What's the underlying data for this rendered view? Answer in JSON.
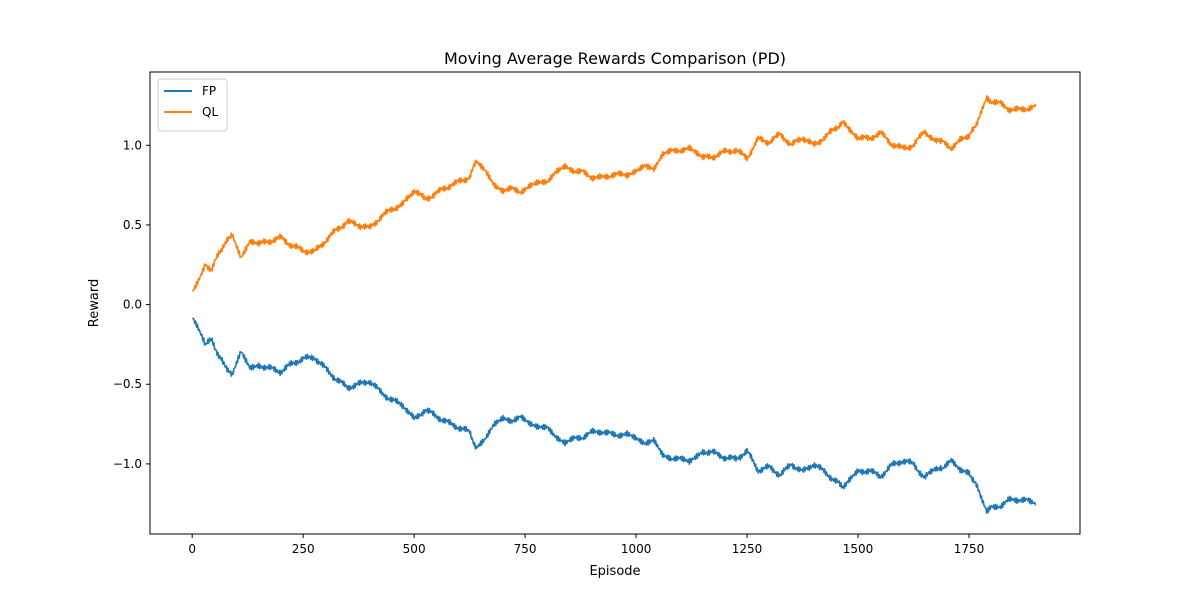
{
  "chart_data": {
    "type": "line",
    "title": "Moving Average Rewards Comparison (PD)",
    "xlabel": "Episode",
    "ylabel": "Reward",
    "xlim": [
      -95,
      2000
    ],
    "ylim": [
      -1.44,
      1.46
    ],
    "xticks": [
      0,
      250,
      500,
      750,
      1000,
      1250,
      1500,
      1750
    ],
    "xtick_labels": [
      "0",
      "250",
      "500",
      "750",
      "1000",
      "1250",
      "1500",
      "1750"
    ],
    "yticks": [
      -1.0,
      -0.5,
      0.0,
      0.5,
      1.0
    ],
    "ytick_labels": [
      "−1.0",
      "−0.5",
      "0.0",
      "0.5",
      "1.0"
    ],
    "grid": false,
    "legend_position": "top-left",
    "series": [
      {
        "name": "FP",
        "color": "#1f77b4",
        "x": [
          0,
          10,
          20,
          30,
          45,
          60,
          75,
          90,
          110,
          130,
          150,
          175,
          200,
          225,
          250,
          275,
          300,
          325,
          350,
          375,
          400,
          425,
          450,
          475,
          500,
          525,
          550,
          575,
          600,
          625,
          640,
          660,
          680,
          700,
          720,
          740,
          760,
          780,
          800,
          820,
          840,
          860,
          880,
          900,
          920,
          940,
          960,
          980,
          1000,
          1020,
          1040,
          1060,
          1080,
          1100,
          1120,
          1150,
          1175,
          1200,
          1225,
          1250,
          1275,
          1300,
          1325,
          1350,
          1375,
          1400,
          1425,
          1450,
          1465,
          1480,
          1500,
          1525,
          1550,
          1575,
          1600,
          1625,
          1650,
          1675,
          1690,
          1710,
          1730,
          1750,
          1765,
          1780,
          1790,
          1800,
          1820,
          1840,
          1860,
          1880,
          1900
        ],
        "y": [
          -0.07,
          -0.12,
          -0.18,
          -0.25,
          -0.22,
          -0.33,
          -0.38,
          -0.45,
          -0.3,
          -0.4,
          -0.38,
          -0.4,
          -0.42,
          -0.37,
          -0.34,
          -0.33,
          -0.4,
          -0.47,
          -0.52,
          -0.5,
          -0.48,
          -0.55,
          -0.6,
          -0.63,
          -0.72,
          -0.66,
          -0.7,
          -0.74,
          -0.77,
          -0.8,
          -0.9,
          -0.85,
          -0.76,
          -0.72,
          -0.74,
          -0.7,
          -0.74,
          -0.76,
          -0.76,
          -0.83,
          -0.87,
          -0.84,
          -0.85,
          -0.8,
          -0.81,
          -0.8,
          -0.82,
          -0.8,
          -0.83,
          -0.87,
          -0.85,
          -0.95,
          -0.98,
          -0.97,
          -0.99,
          -0.92,
          -0.93,
          -0.96,
          -0.97,
          -0.92,
          -1.04,
          -1.02,
          -1.07,
          -1.0,
          -1.05,
          -1.0,
          -1.05,
          -1.11,
          -1.14,
          -1.11,
          -1.05,
          -1.04,
          -1.08,
          -1.01,
          -0.98,
          -1.0,
          -1.09,
          -1.02,
          -1.04,
          -0.98,
          -1.04,
          -1.05,
          -1.13,
          -1.22,
          -1.29,
          -1.26,
          -1.27,
          -1.22,
          -1.24,
          -1.23,
          -1.26
        ]
      },
      {
        "name": "QL",
        "color": "#ff7f0e",
        "x": [
          0,
          10,
          20,
          30,
          45,
          60,
          75,
          90,
          110,
          130,
          150,
          175,
          200,
          225,
          250,
          275,
          300,
          325,
          350,
          375,
          400,
          425,
          450,
          475,
          500,
          525,
          550,
          575,
          600,
          625,
          640,
          660,
          680,
          700,
          720,
          740,
          760,
          780,
          800,
          820,
          840,
          860,
          880,
          900,
          920,
          940,
          960,
          980,
          1000,
          1020,
          1040,
          1060,
          1080,
          1100,
          1120,
          1150,
          1175,
          1200,
          1225,
          1250,
          1275,
          1300,
          1325,
          1350,
          1375,
          1400,
          1425,
          1450,
          1465,
          1480,
          1500,
          1525,
          1550,
          1575,
          1600,
          1625,
          1650,
          1675,
          1690,
          1710,
          1730,
          1750,
          1765,
          1780,
          1790,
          1800,
          1820,
          1840,
          1860,
          1880,
          1900
        ],
        "y": [
          0.07,
          0.12,
          0.18,
          0.25,
          0.22,
          0.33,
          0.38,
          0.45,
          0.3,
          0.4,
          0.38,
          0.4,
          0.42,
          0.37,
          0.34,
          0.33,
          0.4,
          0.47,
          0.52,
          0.5,
          0.48,
          0.55,
          0.6,
          0.63,
          0.72,
          0.66,
          0.7,
          0.74,
          0.77,
          0.8,
          0.9,
          0.85,
          0.76,
          0.72,
          0.74,
          0.7,
          0.74,
          0.76,
          0.76,
          0.83,
          0.87,
          0.84,
          0.85,
          0.8,
          0.81,
          0.8,
          0.82,
          0.8,
          0.83,
          0.87,
          0.85,
          0.95,
          0.98,
          0.97,
          0.99,
          0.92,
          0.93,
          0.96,
          0.97,
          0.92,
          1.04,
          1.02,
          1.07,
          1.0,
          1.05,
          1.0,
          1.05,
          1.11,
          1.14,
          1.11,
          1.05,
          1.04,
          1.08,
          1.01,
          0.98,
          1.0,
          1.09,
          1.02,
          1.04,
          0.98,
          1.04,
          1.05,
          1.13,
          1.22,
          1.29,
          1.26,
          1.27,
          1.22,
          1.24,
          1.23,
          1.26
        ]
      }
    ]
  }
}
